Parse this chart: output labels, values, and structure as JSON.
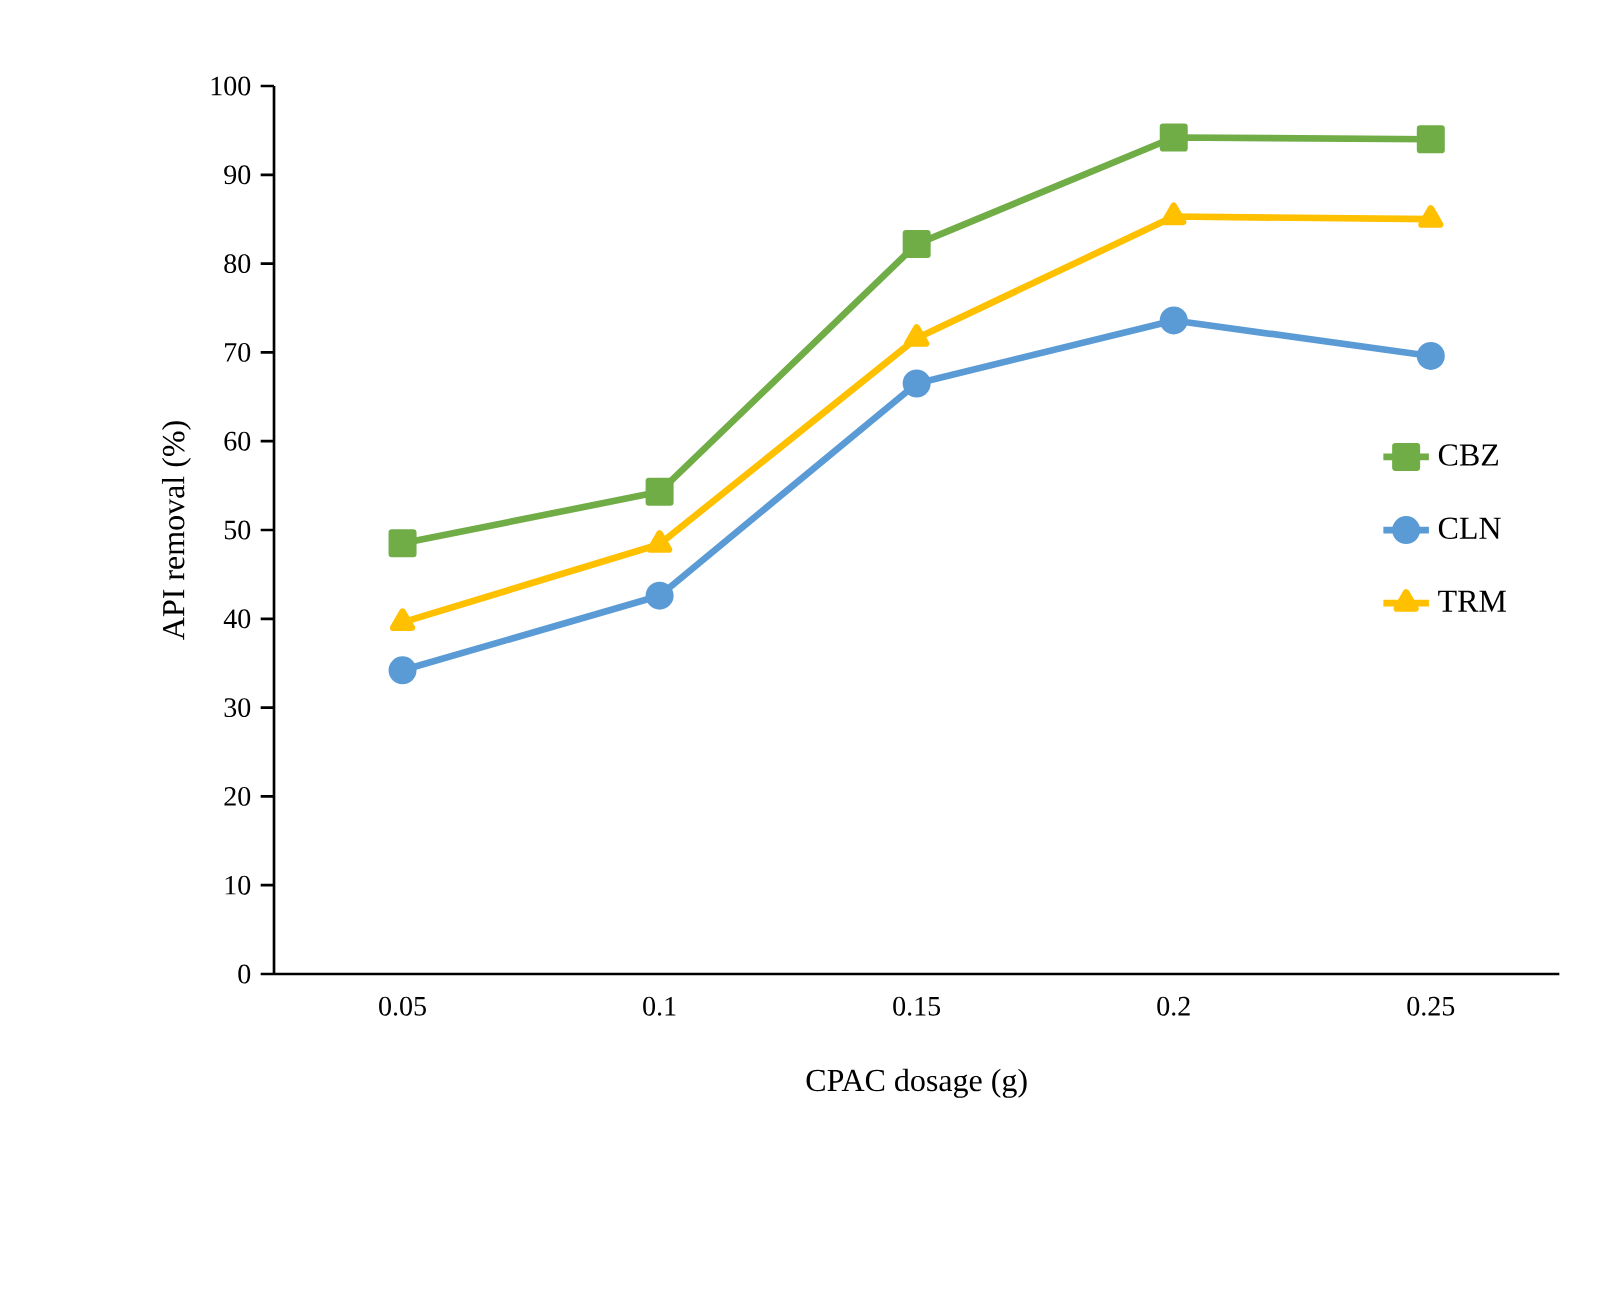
{
  "chart_data": {
    "type": "line",
    "xlabel": "CPAC dosage (g)",
    "ylabel": "API removal (%)",
    "categories": [
      "0.05",
      "0.1",
      "0.15",
      "0.2",
      "0.25"
    ],
    "series": [
      {
        "name": "CBZ",
        "color": "#70ad47",
        "marker": "square",
        "values": [
          48.5,
          54.3,
          82.2,
          94.2,
          94.0
        ]
      },
      {
        "name": "CLN",
        "color": "#5b9bd5",
        "marker": "circle",
        "values": [
          34.2,
          42.6,
          66.5,
          73.6,
          69.6
        ]
      },
      {
        "name": "TRM",
        "color": "#ffc000",
        "marker": "triangle",
        "values": [
          39.6,
          48.4,
          71.6,
          85.3,
          85.0
        ]
      }
    ],
    "ylim": [
      0,
      100
    ],
    "yticks": [
      0,
      10,
      20,
      30,
      40,
      50,
      60,
      70,
      80,
      90,
      100
    ],
    "grid": false,
    "legend": "right",
    "line_style": "solid"
  }
}
